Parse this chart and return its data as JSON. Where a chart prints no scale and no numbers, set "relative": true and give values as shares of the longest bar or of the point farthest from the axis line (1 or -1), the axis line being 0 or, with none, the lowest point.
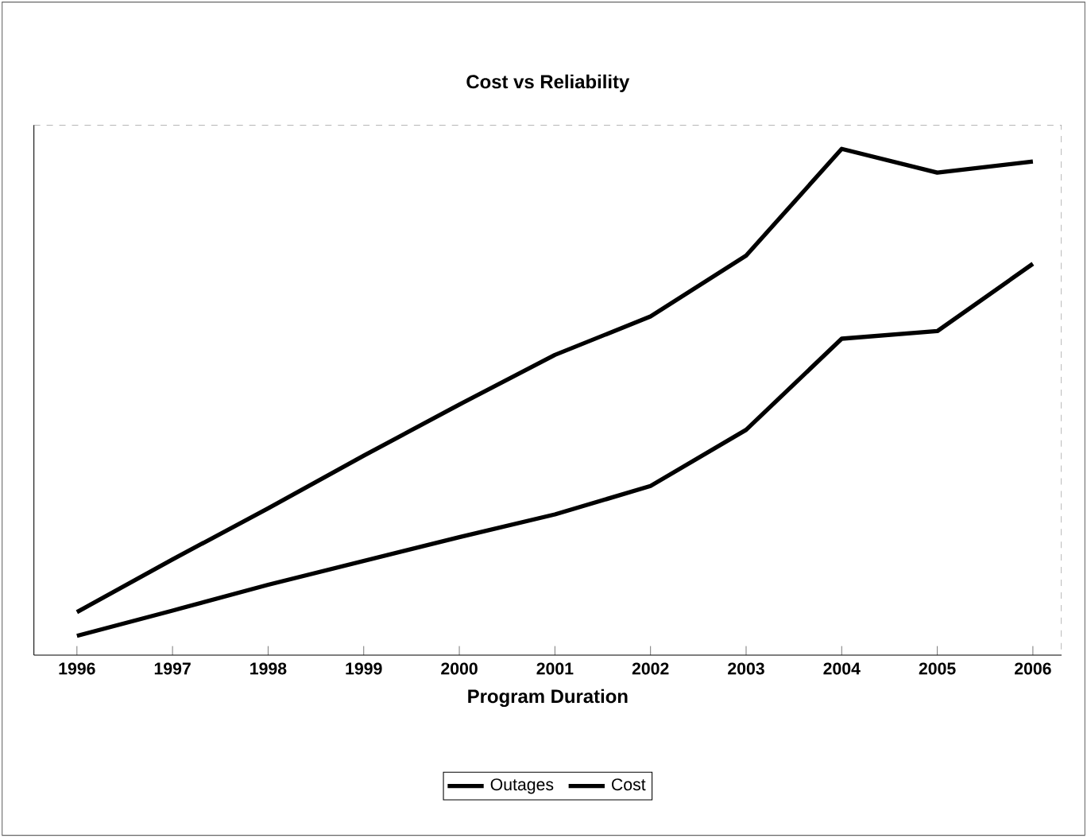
{
  "chart_data": {
    "type": "line",
    "title": "Cost vs Reliability",
    "xlabel": "Program Duration",
    "relative": true,
    "legend": "bottom",
    "grid": false,
    "marker": "none",
    "line_style": "solid",
    "categories": [
      "1996",
      "1997",
      "1998",
      "1999",
      "2000",
      "2001",
      "2002",
      "2003",
      "2004",
      "2005",
      "2006"
    ],
    "series": [
      {
        "name": "Outages",
        "color": "#000000",
        "values": [
          0.085,
          0.189,
          0.29,
          0.394,
          0.495,
          0.593,
          0.669,
          0.789,
          1,
          0.953,
          0.975
        ]
      },
      {
        "name": "Cost",
        "color": "#000000",
        "values": [
          0.038,
          0.088,
          0.139,
          0.186,
          0.233,
          0.278,
          0.334,
          0.445,
          0.625,
          0.64,
          0.773
        ]
      }
    ]
  }
}
